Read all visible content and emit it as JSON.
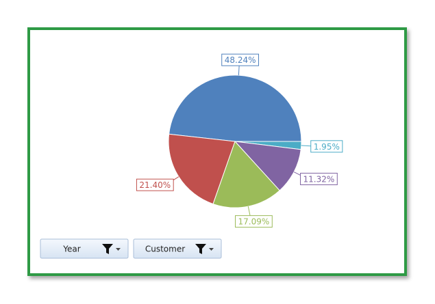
{
  "chart_data": {
    "type": "pie",
    "values": [
      48.24,
      1.95,
      11.32,
      17.09,
      21.4
    ],
    "value_labels": [
      "48.24%",
      "1.95%",
      "11.32%",
      "17.09%",
      "21.40%"
    ],
    "colors": [
      "#4f81bd",
      "#4bacc6",
      "#8064a2",
      "#9bbb59",
      "#c0504d"
    ]
  },
  "filter_buttons": [
    "Year",
    "Customer"
  ]
}
